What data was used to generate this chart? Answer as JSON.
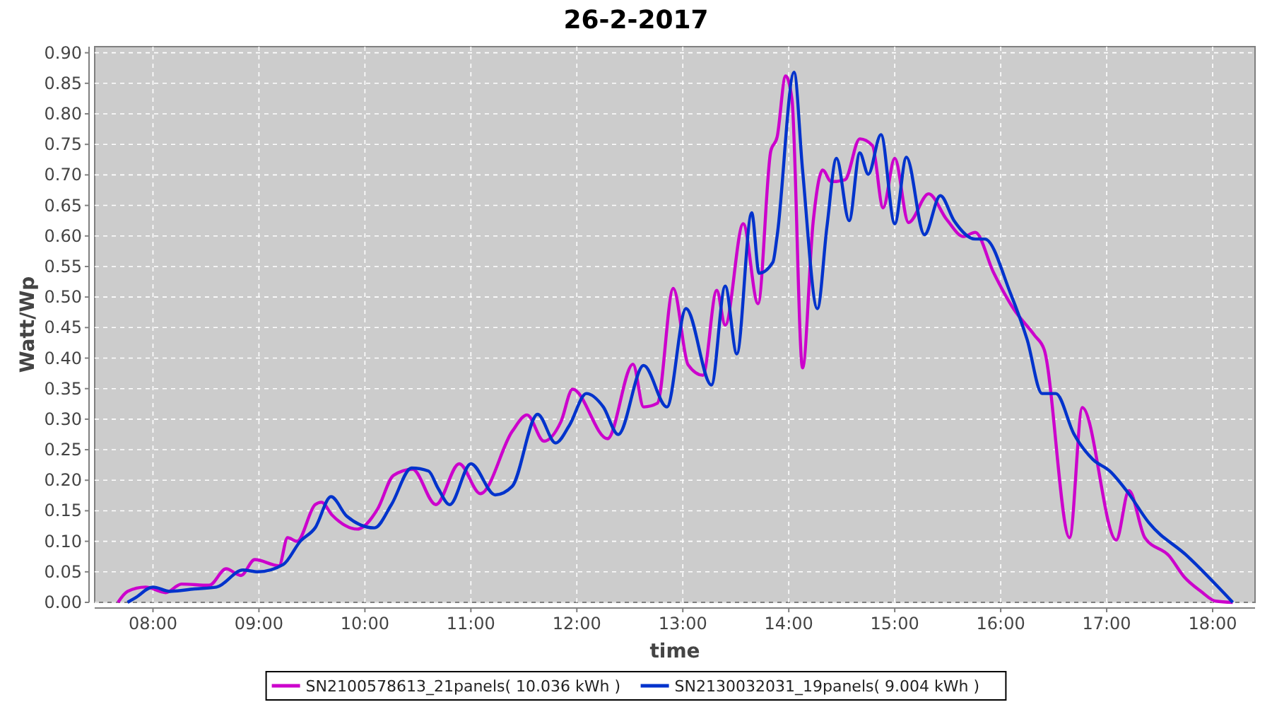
{
  "chart_data": {
    "type": "line",
    "title": "26-2-2017",
    "xlabel": "time",
    "ylabel": "Watt/Wp",
    "xlim": [
      7.45,
      18.4
    ],
    "ylim": [
      0,
      0.91
    ],
    "xticks": [
      {
        "value": 8,
        "label": "08:00"
      },
      {
        "value": 9,
        "label": "09:00"
      },
      {
        "value": 10,
        "label": "10:00"
      },
      {
        "value": 11,
        "label": "11:00"
      },
      {
        "value": 12,
        "label": "12:00"
      },
      {
        "value": 13,
        "label": "13:00"
      },
      {
        "value": 14,
        "label": "14:00"
      },
      {
        "value": 15,
        "label": "15:00"
      },
      {
        "value": 16,
        "label": "16:00"
      },
      {
        "value": 17,
        "label": "17:00"
      },
      {
        "value": 18,
        "label": "18:00"
      }
    ],
    "yticks": [
      {
        "value": 0,
        "label": "0.00"
      },
      {
        "value": 0.05,
        "label": "0.05"
      },
      {
        "value": 0.1,
        "label": "0.10"
      },
      {
        "value": 0.15,
        "label": "0.15"
      },
      {
        "value": 0.2,
        "label": "0.20"
      },
      {
        "value": 0.25,
        "label": "0.25"
      },
      {
        "value": 0.3,
        "label": "0.30"
      },
      {
        "value": 0.35,
        "label": "0.35"
      },
      {
        "value": 0.4,
        "label": "0.40"
      },
      {
        "value": 0.45,
        "label": "0.45"
      },
      {
        "value": 0.5,
        "label": "0.50"
      },
      {
        "value": 0.55,
        "label": "0.55"
      },
      {
        "value": 0.6,
        "label": "0.60"
      },
      {
        "value": 0.65,
        "label": "0.65"
      },
      {
        "value": 0.7,
        "label": "0.70"
      },
      {
        "value": 0.75,
        "label": "0.75"
      },
      {
        "value": 0.8,
        "label": "0.80"
      },
      {
        "value": 0.85,
        "label": "0.85"
      },
      {
        "value": 0.9,
        "label": "0.90"
      }
    ],
    "grid": true,
    "legend": "bottom",
    "marker": "none",
    "line_style": "solid",
    "series": [
      {
        "name": "SN2100578613_21panels( 10.036 kWh )",
        "color": "#cc00cc",
        "x": [
          7.67,
          7.76,
          7.93,
          8.12,
          8.27,
          8.53,
          8.69,
          8.83,
          8.96,
          9.19,
          9.27,
          9.36,
          9.53,
          9.59,
          9.69,
          9.93,
          10.12,
          10.27,
          10.45,
          10.67,
          10.89,
          11.09,
          11.39,
          11.53,
          11.69,
          11.85,
          11.96,
          12.29,
          12.53,
          12.63,
          12.76,
          12.91,
          13.05,
          13.19,
          13.32,
          13.4,
          13.57,
          13.71,
          13.83,
          13.89,
          13.97,
          14.03,
          14.13,
          14.23,
          14.32,
          14.4,
          14.53,
          14.67,
          14.79,
          14.89,
          15.0,
          15.13,
          15.32,
          15.49,
          15.65,
          15.76,
          15.93,
          16.12,
          16.32,
          16.41,
          16.65,
          16.77,
          17.09,
          17.21,
          17.36,
          17.59,
          17.73,
          17.89,
          18.03,
          18.19
        ],
        "values": [
          0.0,
          0.018,
          0.025,
          0.016,
          0.03,
          0.028,
          0.055,
          0.044,
          0.07,
          0.06,
          0.106,
          0.1,
          0.16,
          0.164,
          0.143,
          0.12,
          0.153,
          0.208,
          0.218,
          0.16,
          0.227,
          0.178,
          0.28,
          0.307,
          0.264,
          0.296,
          0.349,
          0.268,
          0.39,
          0.32,
          0.326,
          0.514,
          0.389,
          0.372,
          0.511,
          0.454,
          0.62,
          0.489,
          0.739,
          0.762,
          0.862,
          0.824,
          0.384,
          0.623,
          0.708,
          0.689,
          0.692,
          0.759,
          0.748,
          0.646,
          0.727,
          0.622,
          0.669,
          0.627,
          0.599,
          0.606,
          0.541,
          0.481,
          0.437,
          0.414,
          0.106,
          0.319,
          0.102,
          0.183,
          0.106,
          0.076,
          0.042,
          0.018,
          0.002,
          0.0
        ]
      },
      {
        "name": "SN2130032031_19panels( 9.004 kWh )",
        "color": "#0033cc",
        "x": [
          7.76,
          7.83,
          8.0,
          8.16,
          8.39,
          8.6,
          8.85,
          8.99,
          9.23,
          9.39,
          9.53,
          9.68,
          9.83,
          10.09,
          10.25,
          10.44,
          10.6,
          10.69,
          10.8,
          11.0,
          11.23,
          11.39,
          11.63,
          11.8,
          11.93,
          12.09,
          12.25,
          12.39,
          12.63,
          12.85,
          13.03,
          13.27,
          13.4,
          13.51,
          13.65,
          13.72,
          13.85,
          13.89,
          14.05,
          14.13,
          14.27,
          14.36,
          14.45,
          14.57,
          14.67,
          14.75,
          14.87,
          15.0,
          15.11,
          15.28,
          15.43,
          15.56,
          15.76,
          15.85,
          16.09,
          16.25,
          16.39,
          16.52,
          16.69,
          16.87,
          17.03,
          17.2,
          17.4,
          17.76,
          18.19
        ],
        "values": [
          0.0,
          0.007,
          0.025,
          0.018,
          0.022,
          0.025,
          0.053,
          0.05,
          0.062,
          0.1,
          0.122,
          0.173,
          0.141,
          0.122,
          0.16,
          0.22,
          0.215,
          0.187,
          0.16,
          0.227,
          0.176,
          0.19,
          0.308,
          0.261,
          0.29,
          0.342,
          0.32,
          0.275,
          0.388,
          0.32,
          0.481,
          0.356,
          0.518,
          0.407,
          0.638,
          0.539,
          0.557,
          0.6,
          0.868,
          0.708,
          0.481,
          0.615,
          0.727,
          0.625,
          0.736,
          0.701,
          0.766,
          0.62,
          0.729,
          0.602,
          0.666,
          0.625,
          0.595,
          0.595,
          0.507,
          0.43,
          0.342,
          0.342,
          0.276,
          0.234,
          0.215,
          0.18,
          0.13,
          0.076,
          0.0
        ]
      }
    ]
  }
}
